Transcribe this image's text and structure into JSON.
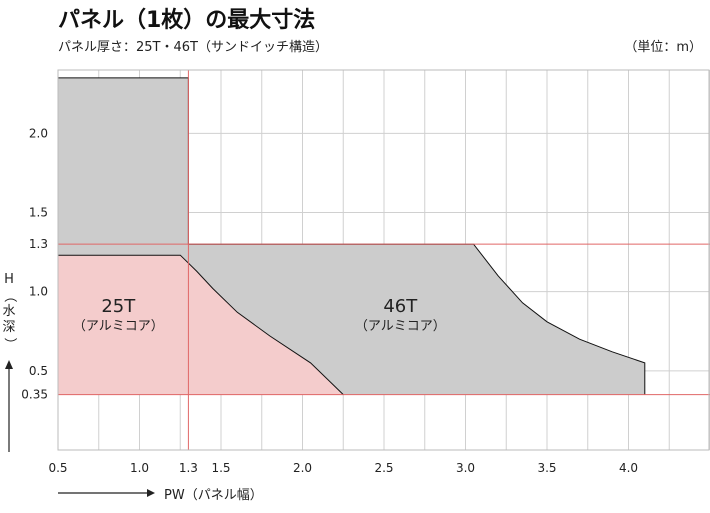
{
  "chart_data": {
    "type": "area",
    "title": "パネル（1枚）の最大寸法",
    "subtitle": "パネル厚さ：25T・46T（サンドイッチ構造）",
    "unit": "（単位：m）",
    "xlabel": "PW（パネル幅）",
    "ylabel": "H（水深）",
    "xlim": [
      0.5,
      4.5
    ],
    "ylim": [
      0.0,
      2.4
    ],
    "x_ticks": [
      0.5,
      1.0,
      1.3,
      1.5,
      2.0,
      2.5,
      3.0,
      3.5,
      4.0
    ],
    "x_tick_labels": [
      "0.5",
      "1.0",
      "1.3",
      "1.5",
      "2.0",
      "2.5",
      "3.0",
      "3.5",
      "4.0"
    ],
    "y_ticks": [
      0.35,
      0.5,
      1.0,
      1.3,
      1.5,
      2.0
    ],
    "y_tick_labels": [
      "0.35",
      "0.5",
      "1.0",
      "1.3",
      "1.5",
      "2.0"
    ],
    "grid": true,
    "reference_lines": {
      "x": [
        1.3
      ],
      "y": [
        0.35,
        1.3
      ]
    },
    "series": [
      {
        "name": "46T",
        "sub": "（アルミコア）",
        "color": "#cccccc",
        "points": [
          [
            0.5,
            0.35
          ],
          [
            0.5,
            2.35
          ],
          [
            1.3,
            2.35
          ],
          [
            1.3,
            1.3
          ],
          [
            3.05,
            1.3
          ],
          [
            3.2,
            1.1
          ],
          [
            3.35,
            0.93
          ],
          [
            3.5,
            0.81
          ],
          [
            3.7,
            0.7
          ],
          [
            3.9,
            0.62
          ],
          [
            4.1,
            0.55
          ],
          [
            4.1,
            0.35
          ]
        ]
      },
      {
        "name": "25T",
        "sub": "（アルミコア）",
        "color": "#f4cccc",
        "points": [
          [
            0.5,
            0.35
          ],
          [
            0.5,
            1.23
          ],
          [
            1.25,
            1.23
          ],
          [
            1.35,
            1.13
          ],
          [
            1.45,
            1.02
          ],
          [
            1.6,
            0.87
          ],
          [
            1.8,
            0.72
          ],
          [
            2.05,
            0.55
          ],
          [
            2.25,
            0.35
          ]
        ]
      }
    ]
  }
}
